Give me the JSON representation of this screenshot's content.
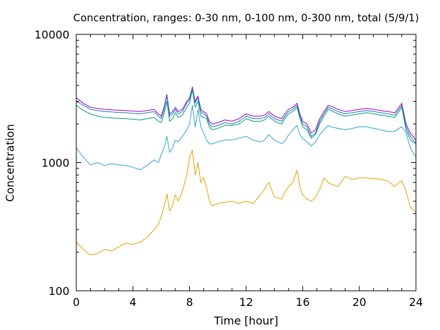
{
  "chart_data": {
    "type": "line",
    "title": "Concentration, ranges: 0-30 nm, 0-100 nm, 0-300 nm, total (5/9/1)",
    "xlabel": "Time [hour]",
    "ylabel": "Concentration",
    "xlim": [
      0,
      24
    ],
    "ylim": [
      100,
      10000
    ],
    "yscale": "log",
    "grid": false,
    "legend": "none",
    "x_ticks": [
      0,
      4,
      8,
      12,
      16,
      20,
      24
    ],
    "x_tick_labels": [
      "0",
      "4",
      "8",
      "12",
      "16",
      "20",
      "24"
    ],
    "y_ticks": [
      100,
      1000,
      10000
    ],
    "y_tick_labels": [
      "100",
      "1000",
      "10000"
    ],
    "x": [
      0,
      0.5,
      1,
      1.5,
      2,
      2.5,
      3,
      3.5,
      4,
      4.5,
      5,
      5.5,
      5.8,
      6,
      6.2,
      6.4,
      6.6,
      6.8,
      7,
      7.2,
      7.5,
      7.8,
      8,
      8.2,
      8.4,
      8.6,
      8.8,
      9,
      9.2,
      9.4,
      9.6,
      10,
      10.5,
      11,
      11.5,
      12,
      12.5,
      13,
      13.3,
      13.6,
      14,
      14.5,
      14.8,
      15,
      15.3,
      15.6,
      15.8,
      16,
      16.3,
      16.6,
      16.9,
      17.2,
      17.5,
      17.8,
      18,
      18.5,
      19,
      19.5,
      20,
      20.5,
      21,
      21.5,
      22,
      22.5,
      22.8,
      23,
      23.3,
      23.6,
      24
    ],
    "series": [
      {
        "color": "#9400d3",
        "values": [
          3200,
          2900,
          2700,
          2650,
          2600,
          2580,
          2560,
          2550,
          2520,
          2500,
          2550,
          2600,
          2400,
          2300,
          2700,
          3400,
          2400,
          2500,
          2700,
          2500,
          2600,
          3000,
          3200,
          3900,
          3000,
          3300,
          2600,
          2500,
          2400,
          2100,
          2000,
          2050,
          2150,
          2100,
          2200,
          2400,
          2300,
          2300,
          2350,
          2500,
          2300,
          2200,
          2450,
          2600,
          2700,
          2900,
          2400,
          2100,
          2000,
          1700,
          1800,
          2200,
          2500,
          2800,
          2750,
          2600,
          2500,
          2550,
          2600,
          2650,
          2600,
          2550,
          2500,
          2450,
          2700,
          2900,
          2000,
          1700,
          1500
        ]
      },
      {
        "color": "#1f77b4",
        "values": [
          3000,
          2800,
          2600,
          2550,
          2500,
          2480,
          2460,
          2450,
          2420,
          2400,
          2450,
          2500,
          2300,
          2200,
          2600,
          3300,
          2300,
          2400,
          2600,
          2400,
          2500,
          2900,
          3100,
          3800,
          2900,
          3200,
          2500,
          2400,
          2300,
          2000,
          1900,
          1950,
          2050,
          2000,
          2100,
          2300,
          2200,
          2200,
          2250,
          2400,
          2200,
          2100,
          2350,
          2500,
          2600,
          2800,
          2300,
          2000,
          1900,
          1600,
          1700,
          2100,
          2400,
          2700,
          2650,
          2500,
          2400,
          2450,
          2500,
          2550,
          2500,
          2450,
          2400,
          2350,
          2600,
          2800,
          1900,
          1600,
          1420
        ]
      },
      {
        "color": "#009e73",
        "values": [
          2800,
          2550,
          2400,
          2300,
          2250,
          2230,
          2210,
          2200,
          2180,
          2150,
          2200,
          2250,
          2100,
          2050,
          2400,
          3000,
          2100,
          2200,
          2450,
          2250,
          2350,
          2700,
          2900,
          3700,
          2700,
          3000,
          2300,
          2250,
          2200,
          1900,
          1800,
          1850,
          1950,
          1950,
          2000,
          2200,
          2100,
          2100,
          2150,
          2300,
          2100,
          2000,
          2250,
          2400,
          2500,
          2700,
          2200,
          1900,
          1800,
          1550,
          1650,
          2000,
          2300,
          2600,
          2550,
          2400,
          2300,
          2350,
          2400,
          2450,
          2400,
          2350,
          2300,
          2250,
          2500,
          2700,
          1800,
          1500,
          1400
        ]
      },
      {
        "color": "#2aa3cf",
        "values": [
          1300,
          1100,
          960,
          1000,
          950,
          980,
          960,
          950,
          920,
          880,
          950,
          1050,
          1000,
          1150,
          1300,
          1600,
          1200,
          1300,
          1500,
          1450,
          1600,
          1800,
          2000,
          2800,
          1900,
          2600,
          1900,
          1700,
          1500,
          1400,
          1400,
          1450,
          1500,
          1500,
          1550,
          1600,
          1500,
          1450,
          1500,
          1650,
          1500,
          1400,
          1500,
          1650,
          1800,
          1950,
          1650,
          1550,
          1450,
          1350,
          1450,
          1650,
          1800,
          1950,
          1900,
          1850,
          1800,
          1850,
          1900,
          1900,
          1850,
          1800,
          1750,
          1750,
          1850,
          1900,
          1700,
          1300,
          1100
        ]
      },
      {
        "color": "#e69f00",
        "values": [
          240,
          210,
          190,
          195,
          210,
          205,
          220,
          235,
          230,
          240,
          260,
          300,
          330,
          380,
          450,
          570,
          420,
          460,
          560,
          500,
          600,
          800,
          1100,
          1250,
          800,
          1000,
          700,
          760,
          650,
          500,
          460,
          480,
          490,
          500,
          480,
          500,
          480,
          560,
          620,
          700,
          540,
          520,
          600,
          650,
          700,
          870,
          650,
          560,
          520,
          500,
          530,
          620,
          760,
          700,
          680,
          650,
          780,
          740,
          760,
          760,
          750,
          740,
          720,
          650,
          700,
          720,
          600,
          450,
          410
        ]
      }
    ]
  }
}
